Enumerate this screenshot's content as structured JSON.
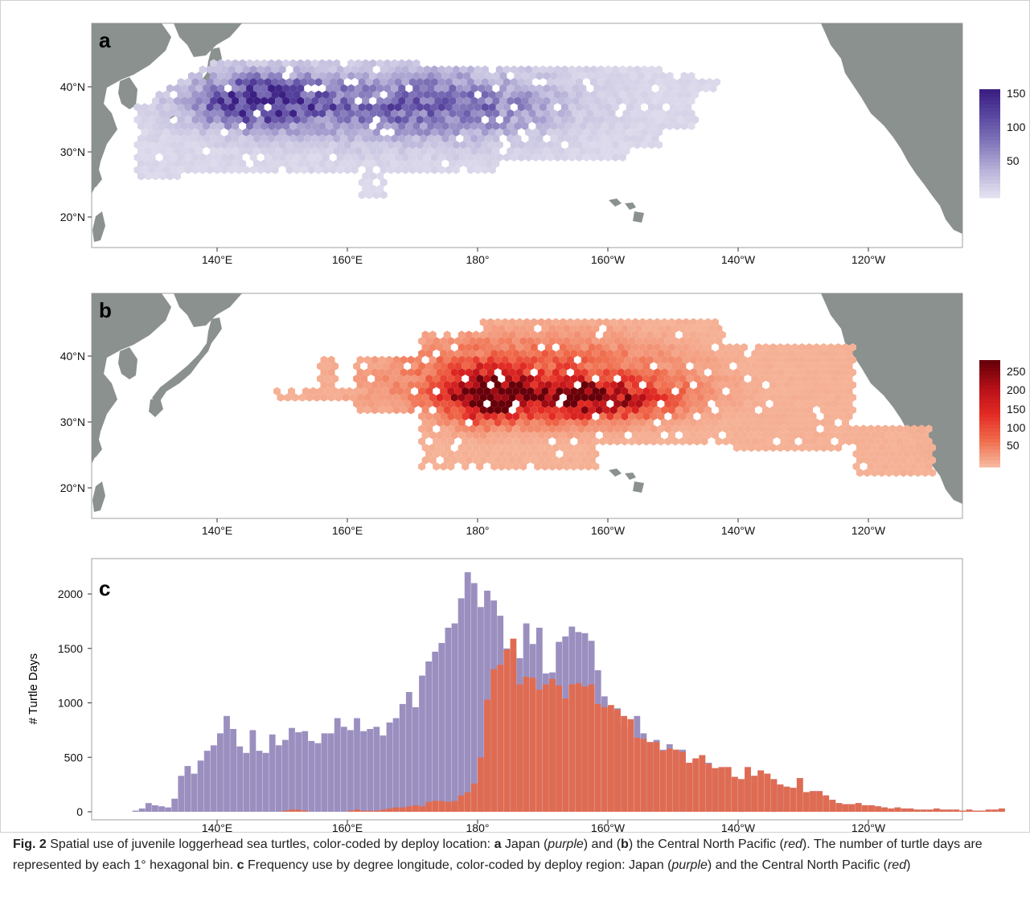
{
  "figure": {
    "panel_a": {
      "label": "a",
      "lat_ticks": [
        "20°N",
        "30°N",
        "40°N"
      ],
      "lon_ticks": [
        "140°E",
        "160°E",
        "180°",
        "160°W",
        "140°W",
        "120°W"
      ],
      "legend_ticks": [
        "50",
        "100",
        "150"
      ],
      "legend_colors": [
        "#e3e1ef",
        "#b7b2d8",
        "#8479bb",
        "#5c4aa2",
        "#3b1f83"
      ]
    },
    "panel_b": {
      "label": "b",
      "lat_ticks": [
        "20°N",
        "30°N",
        "40°N"
      ],
      "lon_ticks": [
        "140°E",
        "160°E",
        "180°",
        "160°W",
        "140°W",
        "120°W"
      ],
      "legend_ticks": [
        "50",
        "100",
        "150",
        "200",
        "250"
      ],
      "legend_colors": [
        "#f6b79c",
        "#ef6a4a",
        "#e32a24",
        "#b51018",
        "#680009"
      ]
    },
    "panel_c": {
      "label": "c",
      "ylabel": "# Turtle Days",
      "y_ticks": [
        "0",
        "500",
        "1000",
        "1500",
        "2000"
      ],
      "x_ticks": [
        "140°E",
        "160°E",
        "180°",
        "160°W",
        "140°W",
        "120°W"
      ]
    }
  },
  "chart_data": {
    "type": "bar",
    "title": "",
    "xlabel": "",
    "ylabel": "# Turtle Days",
    "ylim": [
      0,
      2250
    ],
    "x_range_deg_east": [
      126,
      261
    ],
    "bin_width_deg": 1,
    "bin_start_deg_east": [
      126,
      127,
      128,
      129,
      130,
      131,
      132,
      133,
      134,
      135,
      136,
      137,
      138,
      139,
      140,
      141,
      142,
      143,
      144,
      145,
      146,
      147,
      148,
      149,
      150,
      151,
      152,
      153,
      154,
      155,
      156,
      157,
      158,
      159,
      160,
      161,
      162,
      163,
      164,
      165,
      166,
      167,
      168,
      169,
      170,
      171,
      172,
      173,
      174,
      175,
      176,
      177,
      178,
      179,
      180,
      181,
      182,
      183,
      184,
      185,
      186,
      187,
      188,
      189,
      190,
      191,
      192,
      193,
      194,
      195,
      196,
      197,
      198,
      199,
      200,
      201,
      202,
      203,
      204,
      205,
      206,
      207,
      208,
      209,
      210,
      211,
      212,
      213,
      214,
      215,
      216,
      217,
      218,
      219,
      220,
      221,
      222,
      223,
      224,
      225,
      226,
      227,
      228,
      229,
      230,
      231,
      232,
      233,
      234,
      235,
      236,
      237,
      238,
      239,
      240,
      241,
      242,
      243,
      244,
      245,
      246,
      247,
      248,
      249,
      250,
      251,
      252,
      253,
      254,
      255,
      256,
      257,
      258,
      259,
      260
    ],
    "series": [
      {
        "color": "#9b8fc0",
        "values": [
          0,
          10,
          30,
          80,
          60,
          50,
          40,
          120,
          330,
          420,
          350,
          470,
          560,
          610,
          720,
          880,
          760,
          600,
          540,
          750,
          560,
          540,
          710,
          610,
          660,
          770,
          730,
          740,
          650,
          630,
          720,
          720,
          860,
          780,
          750,
          860,
          740,
          760,
          780,
          700,
          820,
          860,
          990,
          1100,
          960,
          1250,
          1380,
          1470,
          1550,
          1690,
          1730,
          1960,
          2200,
          2100,
          1880,
          2030,
          1940,
          1800,
          1500,
          1460,
          1410,
          1730,
          1540,
          1690,
          1270,
          1280,
          1560,
          1610,
          1700,
          1650,
          1640,
          1570,
          1300,
          1060,
          920,
          950,
          790,
          770,
          880,
          720,
          640,
          660,
          570,
          620,
          570,
          570,
          450,
          490,
          520,
          450,
          400,
          410,
          410,
          320,
          300,
          410,
          330,
          380,
          350,
          300,
          250,
          230,
          220,
          310,
          180,
          190,
          190,
          150,
          110,
          80,
          70,
          70,
          80,
          60,
          60,
          50,
          40,
          30,
          40,
          30,
          30,
          20,
          20,
          20,
          30,
          20,
          20,
          20,
          10,
          20,
          10,
          10,
          20,
          20,
          30
        ]
      },
      {
        "color": "#df6c52",
        "values": [
          0,
          0,
          0,
          0,
          0,
          0,
          0,
          0,
          0,
          0,
          0,
          0,
          0,
          0,
          0,
          0,
          0,
          0,
          0,
          0,
          0,
          0,
          0,
          0,
          10,
          20,
          20,
          10,
          0,
          0,
          0,
          0,
          0,
          0,
          10,
          20,
          10,
          10,
          10,
          20,
          30,
          40,
          40,
          50,
          60,
          50,
          90,
          100,
          100,
          90,
          100,
          150,
          180,
          260,
          500,
          1030,
          1310,
          1350,
          1490,
          1590,
          1170,
          1240,
          1230,
          1120,
          1170,
          1220,
          1160,
          1040,
          1170,
          1180,
          1150,
          1170,
          990,
          960,
          980,
          940,
          880,
          850,
          680,
          670,
          640,
          640,
          560,
          580,
          570,
          550,
          450,
          490,
          520,
          440,
          400,
          410,
          410,
          320,
          300,
          410,
          330,
          380,
          350,
          300,
          250,
          230,
          220,
          310,
          180,
          190,
          190,
          150,
          110,
          80,
          70,
          70,
          80,
          60,
          60,
          50,
          40,
          30,
          40,
          30,
          30,
          20,
          20,
          20,
          30,
          20,
          20,
          20,
          10,
          20,
          10,
          10,
          20,
          20,
          30
        ]
      }
    ]
  },
  "caption": {
    "fig_label": "Fig. 2",
    "t1": " Spatial use of juvenile loggerhead sea turtles, color-coded by deploy location: ",
    "a": "a",
    "t2": " Japan (",
    "purple1": "purple",
    "t3": ") and (",
    "b": "b",
    "t4": ") the Central North Pacific (",
    "red1": "red",
    "t5": "). The number of turtle days are represented by each 1° hexagonal bin. ",
    "c": "c",
    "t6": " Frequency use by degree longitude, color-coded by deploy region: Japan (",
    "purple2": "purple",
    "t7": ") and the Central North Pacific (",
    "red2": "red",
    "t8": ")"
  }
}
